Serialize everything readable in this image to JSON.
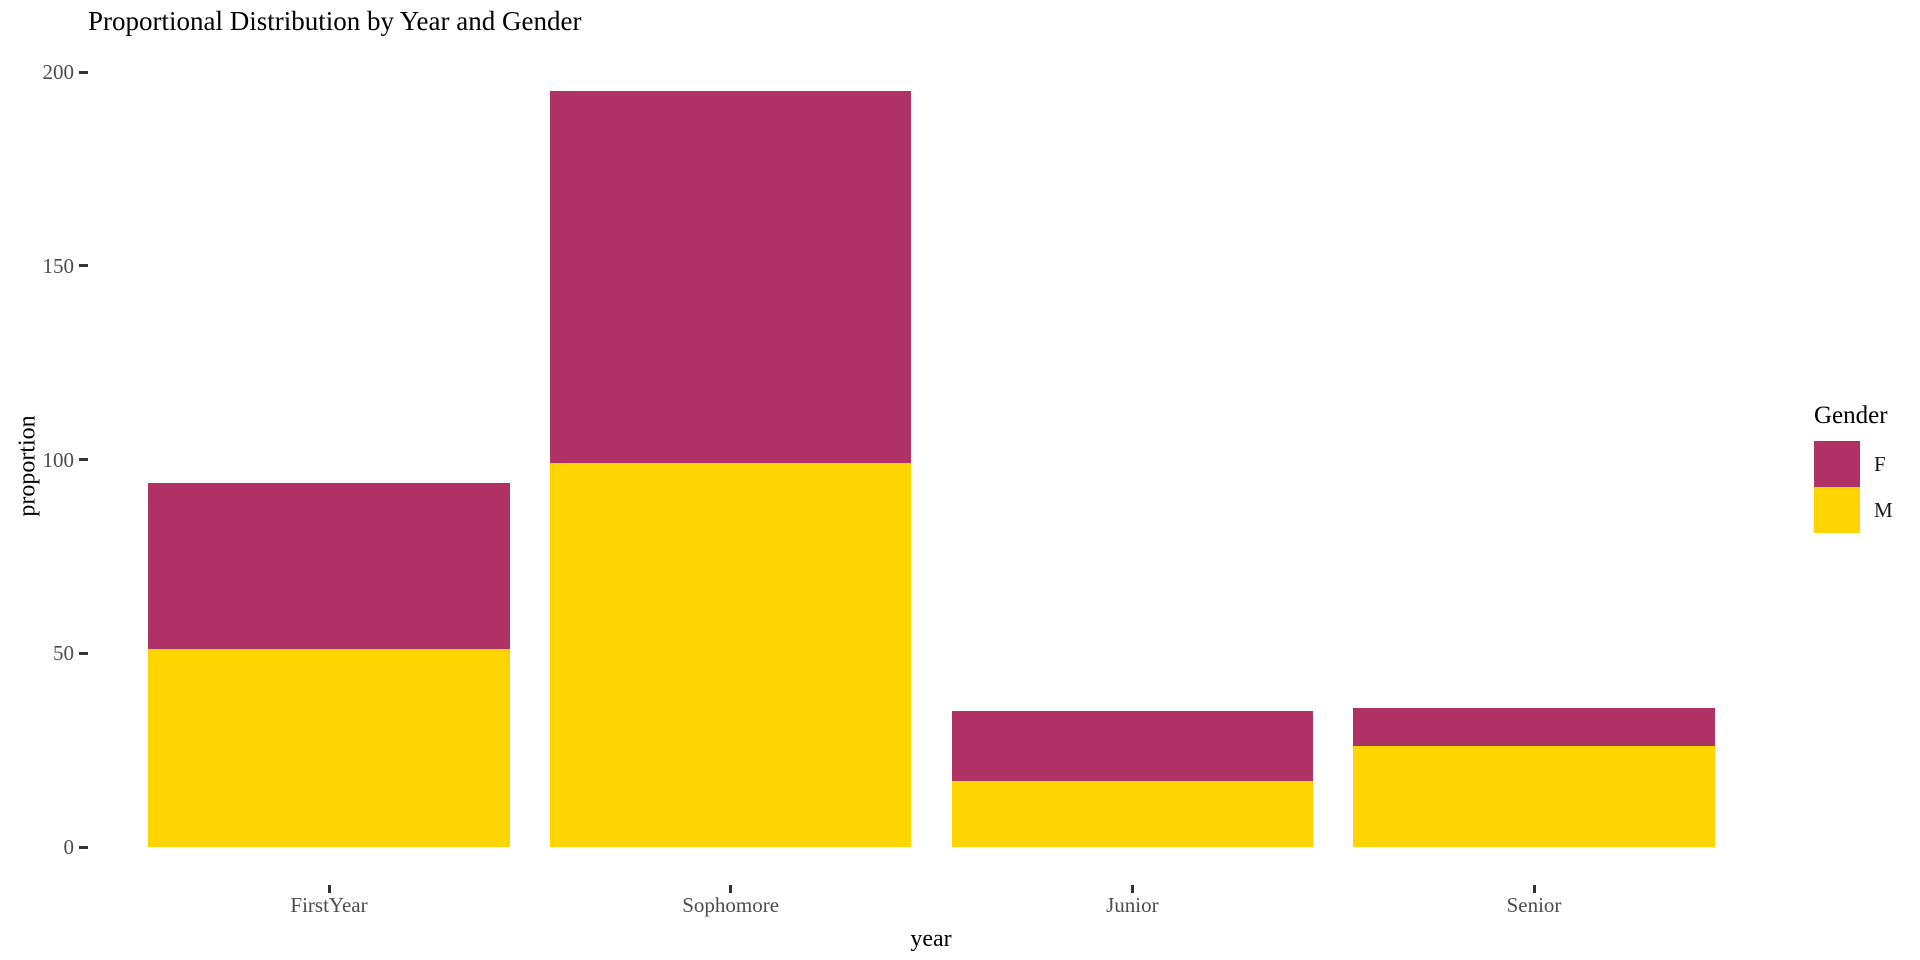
{
  "chart_data": {
    "type": "bar",
    "stacked": true,
    "title": "Proportional Distribution by Year and Gender",
    "xlabel": "year",
    "ylabel": "proportion",
    "categories": [
      "FirstYear",
      "Sophomore",
      "Junior",
      "Senior"
    ],
    "series": [
      {
        "name": "F",
        "color": "#B03265",
        "values": [
          43,
          96,
          18,
          10
        ]
      },
      {
        "name": "M",
        "color": "#FFD500",
        "values": [
          51,
          99,
          17,
          26
        ]
      }
    ],
    "stack_order_bottom_to_top": [
      "M",
      "F"
    ],
    "category_totals": [
      94,
      195,
      35,
      36
    ],
    "ylim": [
      0,
      200
    ],
    "yticks": [
      0,
      50,
      100,
      150,
      200
    ],
    "grid": false,
    "legend": {
      "title": "Gender",
      "position": "right",
      "entries": [
        "F",
        "M"
      ]
    },
    "colors": {
      "axis_text": "#4d4d4d",
      "axis_ticks": "#333333",
      "title_text": "#000000"
    }
  }
}
